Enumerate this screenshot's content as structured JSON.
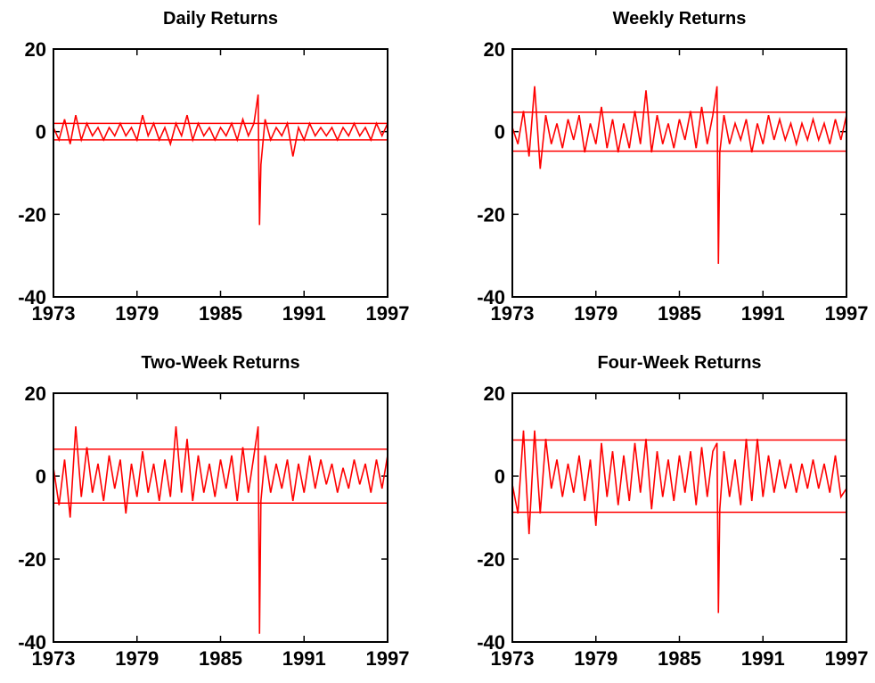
{
  "chart_data": [
    {
      "type": "line",
      "title": "Daily Returns",
      "color": "#ff0000",
      "x": [
        1973.0,
        1973.4,
        1973.8,
        1974.2,
        1974.6,
        1975.0,
        1975.4,
        1975.8,
        1976.2,
        1976.6,
        1977.0,
        1977.4,
        1977.8,
        1978.2,
        1978.6,
        1979.0,
        1979.4,
        1979.8,
        1980.2,
        1980.6,
        1981.0,
        1981.4,
        1981.8,
        1982.2,
        1982.6,
        1983.0,
        1983.4,
        1983.8,
        1984.2,
        1984.6,
        1985.0,
        1985.4,
        1985.8,
        1986.2,
        1986.6,
        1987.0,
        1987.4,
        1987.7,
        1987.8,
        1987.9,
        1988.2,
        1988.6,
        1989.0,
        1989.4,
        1989.8,
        1990.2,
        1990.6,
        1991.0,
        1991.4,
        1991.8,
        1992.2,
        1992.6,
        1993.0,
        1993.4,
        1993.8,
        1994.2,
        1994.6,
        1995.0,
        1995.4,
        1995.8,
        1996.2,
        1996.6,
        1997.0
      ],
      "values": [
        1,
        -2,
        3,
        -3,
        4,
        -2,
        2,
        -1,
        1,
        -2,
        1,
        -1,
        2,
        -1,
        1,
        -2,
        4,
        -1,
        2,
        -2,
        1,
        -3,
        2,
        -1,
        4,
        -2,
        2,
        -1,
        1,
        -2,
        1,
        -1,
        2,
        -2,
        3,
        -1,
        2,
        9,
        -22.6,
        -8,
        3,
        -2,
        1,
        -1,
        2,
        -6,
        1,
        -2,
        2,
        -1,
        1,
        -1,
        1,
        -2,
        1,
        -1,
        2,
        -1,
        1,
        -2,
        2,
        -1,
        2
      ],
      "hlines": [
        2,
        -2
      ],
      "xlim": [
        1973,
        1997
      ],
      "xticks": [
        1973,
        1979,
        1985,
        1991,
        1997
      ],
      "ylim": [
        -40,
        20
      ],
      "yticks": [
        -40,
        -20,
        0,
        20
      ]
    },
    {
      "type": "line",
      "title": "Weekly Returns",
      "color": "#ff0000",
      "x": [
        1973.0,
        1973.4,
        1973.8,
        1974.2,
        1974.6,
        1975.0,
        1975.4,
        1975.8,
        1976.2,
        1976.6,
        1977.0,
        1977.4,
        1977.8,
        1978.2,
        1978.6,
        1979.0,
        1979.4,
        1979.8,
        1980.2,
        1980.6,
        1981.0,
        1981.4,
        1981.8,
        1982.2,
        1982.6,
        1983.0,
        1983.4,
        1983.8,
        1984.2,
        1984.6,
        1985.0,
        1985.4,
        1985.8,
        1986.2,
        1986.6,
        1987.0,
        1987.4,
        1987.7,
        1987.8,
        1987.9,
        1988.2,
        1988.6,
        1989.0,
        1989.4,
        1989.8,
        1990.2,
        1990.6,
        1991.0,
        1991.4,
        1991.8,
        1992.2,
        1992.6,
        1993.0,
        1993.4,
        1993.8,
        1994.2,
        1994.6,
        1995.0,
        1995.4,
        1995.8,
        1996.2,
        1996.6,
        1997.0
      ],
      "values": [
        1,
        -3,
        5,
        -6,
        11,
        -9,
        4,
        -3,
        2,
        -4,
        3,
        -2,
        4,
        -5,
        2,
        -3,
        6,
        -4,
        3,
        -5,
        2,
        -4,
        5,
        -3,
        10,
        -5,
        4,
        -3,
        2,
        -4,
        3,
        -2,
        5,
        -4,
        6,
        -3,
        4,
        11,
        -32,
        -5,
        4,
        -3,
        2,
        -2,
        3,
        -5,
        2,
        -3,
        4,
        -2,
        3,
        -2,
        2,
        -3,
        2,
        -2,
        3,
        -2,
        2,
        -3,
        3,
        -2,
        4
      ],
      "hlines": [
        4.7,
        -4.7
      ],
      "xlim": [
        1973,
        1997
      ],
      "xticks": [
        1973,
        1979,
        1985,
        1991,
        1997
      ],
      "ylim": [
        -40,
        20
      ],
      "yticks": [
        -40,
        -20,
        0,
        20
      ]
    },
    {
      "type": "line",
      "title": "Two-Week Returns",
      "color": "#ff0000",
      "x": [
        1973.0,
        1973.4,
        1973.8,
        1974.2,
        1974.6,
        1975.0,
        1975.4,
        1975.8,
        1976.2,
        1976.6,
        1977.0,
        1977.4,
        1977.8,
        1978.2,
        1978.6,
        1979.0,
        1979.4,
        1979.8,
        1980.2,
        1980.6,
        1981.0,
        1981.4,
        1981.8,
        1982.2,
        1982.6,
        1983.0,
        1983.4,
        1983.8,
        1984.2,
        1984.6,
        1985.0,
        1985.4,
        1985.8,
        1986.2,
        1986.6,
        1987.0,
        1987.4,
        1987.7,
        1987.8,
        1987.9,
        1988.2,
        1988.6,
        1989.0,
        1989.4,
        1989.8,
        1990.2,
        1990.6,
        1991.0,
        1991.4,
        1991.8,
        1992.2,
        1992.6,
        1993.0,
        1993.4,
        1993.8,
        1994.2,
        1994.6,
        1995.0,
        1995.4,
        1995.8,
        1996.2,
        1996.6,
        1997.0
      ],
      "values": [
        2,
        -7,
        4,
        -10,
        12,
        -5,
        7,
        -4,
        3,
        -6,
        5,
        -3,
        4,
        -9,
        3,
        -5,
        6,
        -4,
        3,
        -6,
        4,
        -5,
        12,
        -4,
        9,
        -6,
        5,
        -4,
        3,
        -5,
        4,
        -3,
        5,
        -6,
        7,
        -4,
        5,
        12,
        -38,
        -6,
        5,
        -4,
        3,
        -3,
        4,
        -6,
        3,
        -4,
        5,
        -3,
        4,
        -2,
        3,
        -4,
        2,
        -3,
        4,
        -2,
        3,
        -4,
        4,
        -3,
        5
      ],
      "hlines": [
        6.5,
        -6.5
      ],
      "xlim": [
        1973,
        1997
      ],
      "xticks": [
        1973,
        1979,
        1985,
        1991,
        1997
      ],
      "ylim": [
        -40,
        20
      ],
      "yticks": [
        -40,
        -20,
        0,
        20
      ]
    },
    {
      "type": "line",
      "title": "Four-Week Returns",
      "color": "#ff0000",
      "x": [
        1973.0,
        1973.4,
        1973.8,
        1974.2,
        1974.6,
        1975.0,
        1975.4,
        1975.8,
        1976.2,
        1976.6,
        1977.0,
        1977.4,
        1977.8,
        1978.2,
        1978.6,
        1979.0,
        1979.4,
        1979.8,
        1980.2,
        1980.6,
        1981.0,
        1981.4,
        1981.8,
        1982.2,
        1982.6,
        1983.0,
        1983.4,
        1983.8,
        1984.2,
        1984.6,
        1985.0,
        1985.4,
        1985.8,
        1986.2,
        1986.6,
        1987.0,
        1987.4,
        1987.7,
        1987.8,
        1987.9,
        1988.2,
        1988.6,
        1989.0,
        1989.4,
        1989.8,
        1990.2,
        1990.6,
        1991.0,
        1991.4,
        1991.8,
        1992.2,
        1992.6,
        1993.0,
        1993.4,
        1993.8,
        1994.2,
        1994.6,
        1995.0,
        1995.4,
        1995.8,
        1996.2,
        1996.6,
        1997.0
      ],
      "values": [
        -2,
        -9,
        11,
        -14,
        11,
        -9,
        9,
        -3,
        4,
        -5,
        3,
        -4,
        5,
        -6,
        4,
        -12,
        8,
        -5,
        6,
        -7,
        5,
        -6,
        8,
        -4,
        9,
        -8,
        6,
        -5,
        4,
        -6,
        5,
        -4,
        6,
        -7,
        7,
        -5,
        6,
        8,
        -33,
        -8,
        6,
        -5,
        4,
        -7,
        9,
        -6,
        9,
        -5,
        5,
        -4,
        4,
        -3,
        3,
        -4,
        3,
        -3,
        4,
        -3,
        3,
        -4,
        5,
        -5,
        -3
      ],
      "hlines": [
        8.7,
        -8.7
      ],
      "xlim": [
        1973,
        1997
      ],
      "xticks": [
        1973,
        1979,
        1985,
        1991,
        1997
      ],
      "ylim": [
        -40,
        20
      ],
      "yticks": [
        -40,
        -20,
        0,
        20
      ]
    }
  ]
}
